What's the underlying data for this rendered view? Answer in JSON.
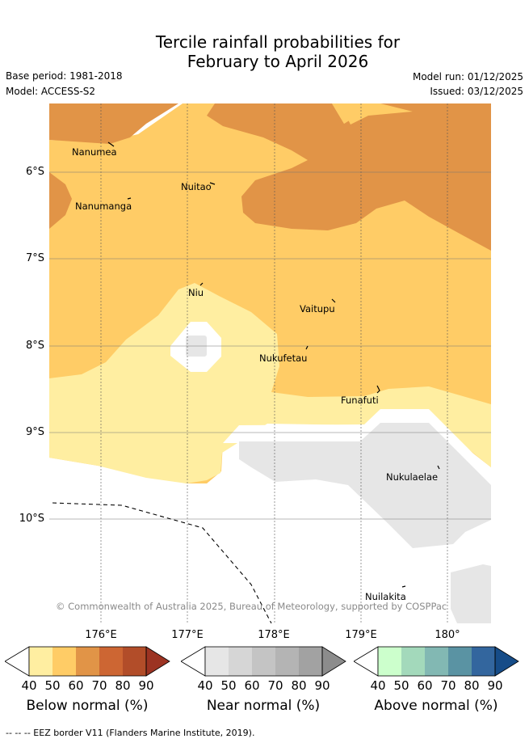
{
  "title_line1": "Tercile rainfall probabilities for",
  "title_line2": "February to April 2026",
  "base_period": "Base period: 1981-2018",
  "model": "Model: ACCESS-S2",
  "model_run": "Model run: 01/12/2025",
  "issued": "Issued: 03/12/2025",
  "lat_labels": [
    "6°S",
    "7°S",
    "8°S",
    "9°S",
    "10°S"
  ],
  "lon_labels": [
    "176°E",
    "177°E",
    "178°E",
    "179°E",
    "180°"
  ],
  "places": [
    "Nanumea",
    "Nuitao",
    "Nanumanga",
    "Niu",
    "Vaitupu",
    "Nukufetau",
    "Funafuti",
    "Nukulaelae",
    "Nuilakita"
  ],
  "copyright": "© Commonwealth of Australia 2025, Bureau of Meteorology, supported by COSPPac",
  "colorbars": {
    "below": {
      "title": "Below normal (%)",
      "ticks": [
        "40",
        "50",
        "60",
        "70",
        "80",
        "90"
      ],
      "colors": [
        "#ffeea1",
        "#ffcc66",
        "#e19447",
        "#cd6633",
        "#b24d29",
        "#9c3322"
      ]
    },
    "near": {
      "title": "Near normal (%)",
      "ticks": [
        "40",
        "50",
        "60",
        "70",
        "80",
        "90"
      ],
      "colors": [
        "#e6e6e6",
        "#d6d6d6",
        "#c4c4c4",
        "#b4b4b4",
        "#a2a2a2",
        "#8c8c8c"
      ]
    },
    "above": {
      "title": "Above normal (%)",
      "ticks": [
        "40",
        "50",
        "60",
        "70",
        "80",
        "90"
      ],
      "colors": [
        "#ccffcc",
        "#a3d9bb",
        "#82b8b3",
        "#5a93a3",
        "#33669e",
        "#164c88"
      ]
    }
  },
  "footer": "-- -- -- EEZ border V11 (Flanders Marine Institute, 2019)."
}
